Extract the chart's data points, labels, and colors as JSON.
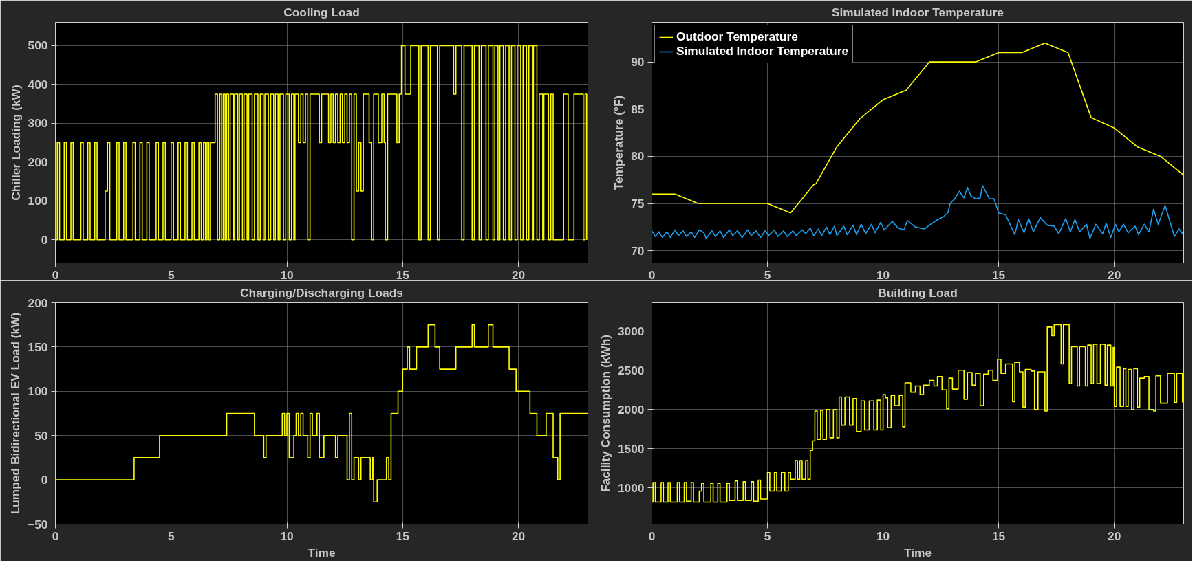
{
  "chart_data": [
    {
      "type": "step",
      "title": "Cooling Load",
      "ylabel": "Chiller Loading (kW)",
      "xlim": [
        0,
        23
      ],
      "xticks": [
        0,
        5,
        10,
        15,
        20
      ],
      "ylim": [
        -60,
        560
      ],
      "yticks": [
        0,
        100,
        200,
        300,
        400,
        500
      ],
      "grid": true,
      "series": [
        {
          "color": "#ffff00",
          "x": [
            0,
            0.08,
            0.18,
            0.38,
            0.48,
            0.67,
            0.77,
            1.1,
            1.2,
            1.4,
            1.5,
            1.7,
            1.8,
            2.15,
            2.25,
            2.35,
            2.65,
            2.75,
            2.95,
            3.05,
            3.35,
            3.45,
            3.65,
            3.75,
            3.95,
            4.05,
            4.35,
            4.45,
            4.65,
            4.75,
            5.0,
            5.1,
            5.3,
            5.4,
            5.6,
            5.7,
            5.9,
            6.0,
            6.2,
            6.3,
            6.4,
            6.48,
            6.55,
            6.63,
            6.7,
            6.9,
            7.0,
            7.1,
            7.18,
            7.25,
            7.33,
            7.4,
            7.48,
            7.55,
            7.7,
            7.75,
            7.88,
            7.95,
            8.08,
            8.15,
            8.28,
            8.35,
            8.5,
            8.6,
            8.75,
            8.85,
            8.98,
            9.05,
            9.2,
            9.3,
            9.43,
            9.5,
            9.62,
            9.7,
            9.85,
            9.95,
            10.1,
            10.2,
            10.3,
            10.35,
            10.5,
            10.6,
            10.7,
            10.8,
            10.9,
            11.0,
            11.4,
            11.5,
            11.8,
            11.9,
            12.0,
            12.1,
            12.2,
            12.3,
            12.4,
            12.5,
            12.6,
            12.7,
            12.8,
            12.9,
            13.0,
            13.1,
            13.2,
            13.3,
            13.55,
            13.65,
            13.75,
            13.95,
            14.1,
            14.2,
            14.25,
            14.35,
            14.75,
            14.85,
            14.95,
            15.1,
            15.35,
            15.7,
            15.8,
            16.1,
            16.2,
            16.5,
            16.6,
            17.2,
            17.3,
            17.55,
            17.65,
            18.0,
            18.1,
            18.3,
            18.4,
            18.6,
            18.7,
            18.9,
            18.98,
            19.12,
            19.2,
            19.35,
            19.45,
            19.6,
            19.7,
            19.85,
            19.95,
            20.1,
            20.2,
            20.35,
            20.45,
            20.6,
            20.65,
            20.8,
            20.9,
            21.05,
            21.1,
            21.3,
            21.4,
            21.5,
            21.95,
            22.15,
            22.4,
            22.8,
            22.88,
            22.95
          ],
          "values": [
            0,
            250,
            0,
            250,
            0,
            250,
            0,
            250,
            0,
            250,
            0,
            250,
            0,
            125,
            250,
            0,
            250,
            0,
            250,
            0,
            250,
            0,
            250,
            0,
            250,
            0,
            250,
            0,
            250,
            0,
            250,
            0,
            250,
            0,
            250,
            0,
            250,
            0,
            250,
            0,
            250,
            0,
            250,
            0,
            250,
            375,
            0,
            375,
            0,
            375,
            0,
            375,
            0,
            375,
            0,
            375,
            0,
            375,
            0,
            375,
            0,
            375,
            0,
            375,
            0,
            375,
            0,
            375,
            0,
            375,
            0,
            375,
            0,
            375,
            0,
            375,
            0,
            375,
            0,
            375,
            250,
            375,
            250,
            375,
            0,
            375,
            250,
            375,
            250,
            375,
            250,
            375,
            250,
            375,
            250,
            375,
            250,
            375,
            0,
            375,
            125,
            250,
            125,
            375,
            250,
            0,
            375,
            250,
            375,
            250,
            0,
            375,
            250,
            375,
            500,
            375,
            500,
            0,
            500,
            0,
            500,
            0,
            500,
            375,
            500,
            0,
            500,
            0,
            500,
            0,
            500,
            0,
            500,
            0,
            500,
            0,
            500,
            0,
            500,
            0,
            500,
            0,
            500,
            0,
            500,
            0,
            500,
            0,
            500,
            0,
            375,
            0,
            375,
            0,
            375,
            0,
            375,
            0,
            375,
            0,
            375,
            0
          ]
        }
      ]
    },
    {
      "type": "line",
      "title": "Simulated Indoor Temperature",
      "ylabel": "Temperature (°F)",
      "xlim": [
        0,
        23
      ],
      "xticks": [
        0,
        5,
        10,
        15,
        20
      ],
      "ylim": [
        68.7,
        94.2
      ],
      "yticks": [
        70,
        75,
        80,
        85,
        90
      ],
      "grid": true,
      "legend": "top left",
      "series": [
        {
          "name": "Outdoor Temperature",
          "color": "#ffff00",
          "x": [
            0,
            1,
            2,
            5,
            6,
            7,
            7.1,
            8,
            9,
            10,
            11,
            12,
            14,
            15,
            16,
            17,
            18,
            19,
            20,
            21,
            22,
            23
          ],
          "values": [
            76,
            76,
            75,
            75,
            74,
            77,
            77.1,
            81,
            84,
            86,
            87,
            90,
            90,
            91,
            91,
            92,
            91,
            84.1,
            83,
            81,
            80,
            78
          ]
        },
        {
          "name": "Simulated Indoor Temperature",
          "color": "#1e9ff0",
          "x": [
            0,
            0.15,
            0.3,
            0.45,
            0.65,
            0.8,
            1.0,
            1.15,
            1.35,
            1.5,
            1.7,
            1.85,
            2.05,
            2.25,
            2.35,
            2.6,
            2.75,
            2.95,
            3.1,
            3.35,
            3.5,
            3.7,
            3.9,
            4.15,
            4.3,
            4.5,
            4.7,
            4.9,
            5.05,
            5.3,
            5.45,
            5.7,
            5.85,
            6.1,
            6.25,
            6.5,
            6.65,
            6.85,
            7.0,
            7.2,
            7.35,
            7.55,
            7.7,
            7.9,
            8.0,
            8.3,
            8.45,
            8.7,
            8.85,
            9.05,
            9.25,
            9.5,
            9.65,
            9.9,
            10.05,
            10.4,
            10.65,
            10.9,
            11.05,
            11.4,
            11.8,
            12.0,
            12.3,
            12.6,
            12.8,
            12.9,
            13.1,
            13.3,
            13.5,
            13.65,
            13.8,
            14.0,
            14.2,
            14.3,
            14.6,
            14.8,
            15.0,
            15.3,
            15.7,
            15.85,
            16.1,
            16.3,
            16.5,
            16.8,
            17.1,
            17.4,
            17.6,
            17.9,
            18.1,
            18.3,
            18.5,
            18.8,
            18.95,
            19.2,
            19.5,
            19.65,
            19.85,
            20.05,
            20.2,
            20.4,
            20.6,
            20.9,
            21.05,
            21.3,
            21.5,
            21.7,
            21.9,
            22.2,
            22.6,
            22.8,
            22.95,
            23.0
          ],
          "values": [
            72.1,
            71.5,
            72.0,
            71.4,
            72.0,
            71.4,
            72.2,
            71.6,
            72.1,
            71.5,
            72.0,
            71.4,
            72.2,
            71.9,
            71.3,
            72.1,
            71.5,
            72.1,
            71.4,
            72.2,
            71.6,
            72.1,
            71.4,
            72.2,
            71.6,
            72.1,
            71.4,
            72.1,
            71.6,
            72.2,
            71.5,
            72.1,
            71.5,
            72.1,
            71.6,
            72.2,
            71.8,
            72.4,
            71.6,
            72.3,
            71.6,
            72.5,
            71.7,
            72.6,
            71.6,
            72.6,
            71.7,
            72.7,
            71.7,
            72.8,
            71.8,
            72.8,
            71.9,
            73.0,
            72.2,
            73.1,
            72.4,
            72.2,
            73.2,
            72.5,
            72.3,
            72.7,
            73.2,
            73.6,
            74.0,
            75.0,
            75.5,
            76.3,
            75.6,
            76.7,
            75.8,
            75.5,
            75.6,
            76.9,
            75.5,
            75.5,
            74.0,
            73.8,
            71.7,
            73.3,
            71.9,
            73.4,
            72.0,
            73.5,
            72.7,
            72.6,
            71.8,
            73.4,
            72.0,
            73.3,
            72.0,
            72.8,
            71.3,
            72.8,
            71.8,
            72.9,
            71.4,
            72.8,
            72.0,
            72.8,
            71.9,
            72.6,
            71.7,
            72.8,
            72.0,
            74.4,
            72.8,
            74.8,
            71.5,
            72.3,
            71.8,
            72.3
          ]
        }
      ]
    },
    {
      "type": "step",
      "title": "Charging/Discharging Loads",
      "xlabel": "Time",
      "ylabel": "Lumped Bidirectional EV Load (kW)",
      "xlim": [
        0,
        23
      ],
      "xticks": [
        0,
        5,
        10,
        15,
        20
      ],
      "ylim": [
        -50,
        200
      ],
      "yticks": [
        -50,
        0,
        50,
        100,
        150,
        200
      ],
      "grid": true,
      "series": [
        {
          "color": "#ffff00",
          "x": [
            0,
            3.4,
            4.5,
            7.4,
            8.6,
            9.0,
            9.1,
            9.8,
            9.9,
            10.0,
            10.1,
            10.3,
            10.4,
            10.5,
            10.6,
            10.7,
            10.9,
            11.0,
            11.1,
            11.3,
            11.4,
            11.6,
            12.1,
            12.2,
            12.6,
            12.7,
            12.8,
            12.9,
            13.1,
            13.2,
            13.6,
            13.7,
            13.75,
            13.9,
            14.3,
            14.4,
            14.5,
            14.8,
            15.0,
            15.2,
            15.3,
            15.6,
            16.1,
            16.4,
            16.6,
            17.3,
            18.0,
            18.1,
            18.7,
            18.9,
            19.6,
            19.9,
            20.5,
            20.8,
            21.2,
            21.5,
            21.7,
            21.8,
            23
          ],
          "values": [
            0,
            25,
            50,
            75,
            50,
            25,
            50,
            75,
            50,
            75,
            25,
            50,
            75,
            50,
            75,
            50,
            25,
            75,
            50,
            75,
            25,
            50,
            25,
            50,
            0,
            75,
            0,
            25,
            0,
            25,
            0,
            25,
            -25,
            0,
            25,
            0,
            75,
            100,
            125,
            150,
            125,
            150,
            175,
            150,
            125,
            150,
            175,
            150,
            175,
            150,
            125,
            100,
            75,
            50,
            75,
            25,
            0,
            75,
            75
          ]
        }
      ]
    },
    {
      "type": "step",
      "title": "Building Load",
      "xlabel": "Time",
      "ylabel": "Facility Consumption (kWh)",
      "xlim": [
        0,
        23
      ],
      "xticks": [
        0,
        5,
        10,
        15,
        20
      ],
      "ylim": [
        540,
        3360
      ],
      "yticks": [
        1000,
        1500,
        2000,
        2500,
        3000
      ],
      "grid": true,
      "series": [
        {
          "color": "#ffff00",
          "x": [
            0,
            0.05,
            0.15,
            0.4,
            0.5,
            0.7,
            0.8,
            1.1,
            1.2,
            1.4,
            1.5,
            1.7,
            1.8,
            2.05,
            2.15,
            2.25,
            2.55,
            2.65,
            2.85,
            2.95,
            3.25,
            3.35,
            3.6,
            3.7,
            3.95,
            4.05,
            4.3,
            4.4,
            4.6,
            4.7,
            5.0,
            5.1,
            5.3,
            5.4,
            5.6,
            5.75,
            5.9,
            6.0,
            6.2,
            6.3,
            6.4,
            6.5,
            6.65,
            6.75,
            6.85,
            6.95,
            7.05,
            7.15,
            7.3,
            7.4,
            7.55,
            7.7,
            7.85,
            8.0,
            8.1,
            8.2,
            8.35,
            8.55,
            8.7,
            8.85,
            9.05,
            9.2,
            9.4,
            9.6,
            9.75,
            9.9,
            10.0,
            10.1,
            10.2,
            10.35,
            10.5,
            10.7,
            10.85,
            10.95,
            11.2,
            11.4,
            11.6,
            11.75,
            12.0,
            12.2,
            12.35,
            12.55,
            12.75,
            12.85,
            13.0,
            13.25,
            13.5,
            13.65,
            13.85,
            14.0,
            14.2,
            14.35,
            14.55,
            14.75,
            14.95,
            15.1,
            15.3,
            15.6,
            15.7,
            15.9,
            16.05,
            16.15,
            16.4,
            16.55,
            16.7,
            17.0,
            17.1,
            17.3,
            17.4,
            17.7,
            17.8,
            18.05,
            18.15,
            18.4,
            18.5,
            18.75,
            18.85,
            19.0,
            19.1,
            19.25,
            19.4,
            19.6,
            19.7,
            19.85,
            19.95,
            20.0,
            20.1,
            20.25,
            20.4,
            20.5,
            20.6,
            20.75,
            20.85,
            21.0,
            21.1,
            21.3,
            21.5,
            21.7,
            21.8,
            22.0,
            22.3,
            22.6,
            22.7,
            22.95
          ],
          "values": [
            820,
            1070,
            820,
            1070,
            820,
            1070,
            820,
            1070,
            820,
            1070,
            830,
            1070,
            820,
            960,
            1060,
            820,
            1060,
            820,
            1060,
            820,
            1060,
            840,
            1090,
            840,
            1080,
            840,
            1080,
            830,
            1100,
            860,
            1200,
            960,
            1200,
            960,
            1200,
            960,
            1200,
            1110,
            1350,
            1110,
            1350,
            1110,
            1350,
            1110,
            1480,
            1600,
            1980,
            1620,
            1990,
            1620,
            2000,
            1640,
            2000,
            1640,
            2160,
            1800,
            2160,
            1800,
            2140,
            1720,
            2110,
            1740,
            2110,
            1740,
            2120,
            1740,
            2190,
            2150,
            1770,
            2180,
            2050,
            2180,
            1780,
            2340,
            2220,
            2300,
            2190,
            2310,
            2370,
            2300,
            2420,
            2250,
            2010,
            2400,
            2260,
            2500,
            2130,
            2470,
            2310,
            2460,
            2050,
            2450,
            2500,
            2370,
            2640,
            2460,
            2580,
            2100,
            2600,
            2480,
            2030,
            2510,
            2490,
            2000,
            2480,
            1980,
            3050,
            2940,
            3080,
            2580,
            3080,
            2330,
            2800,
            2300,
            2800,
            2300,
            2820,
            2330,
            2830,
            2330,
            2830,
            2310,
            2820,
            2300,
            2790,
            2040,
            2540,
            2040,
            2520,
            2040,
            2510,
            2000,
            2520,
            2030,
            2400,
            2420,
            2000,
            1980,
            2430,
            2080,
            2460,
            2090,
            2460,
            2090
          ]
        }
      ]
    }
  ]
}
